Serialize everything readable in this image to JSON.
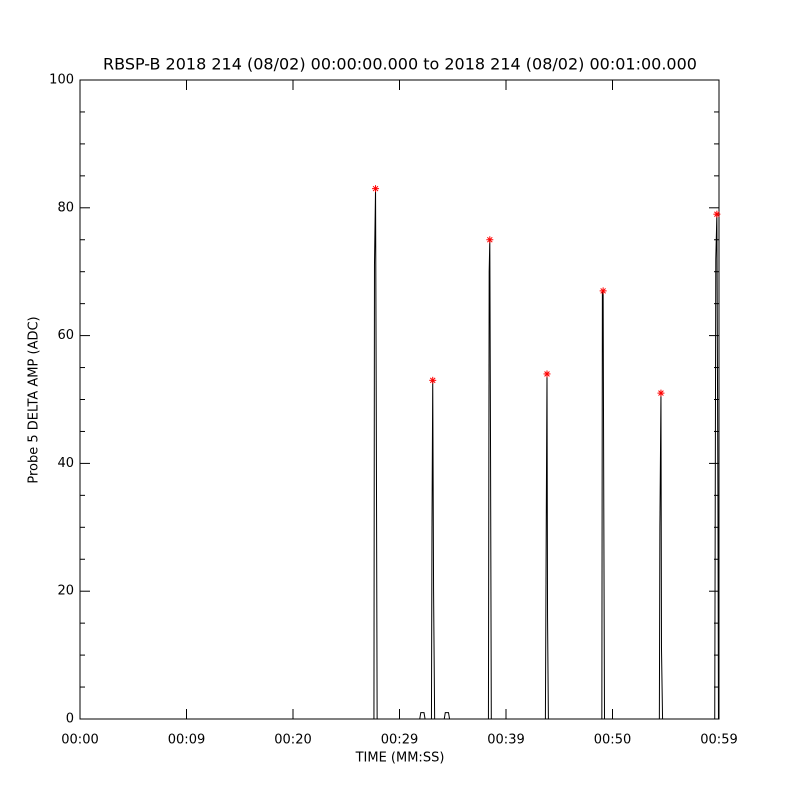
{
  "chart_data": {
    "type": "line",
    "title": "RBSP-B 2018 214 (08/02) 00:00:00.000 to 2018 214 (08/02) 00:01:00.000",
    "xlabel": "TIME (MM:SS)",
    "ylabel": "Probe 5 DELTA AMP (ADC)",
    "xlim": [
      0,
      60
    ],
    "xticks": [
      {
        "value": 0,
        "label": "00:00"
      },
      {
        "value": 10,
        "label": "00:09"
      },
      {
        "value": 20,
        "label": "00:20"
      },
      {
        "value": 30,
        "label": "00:29"
      },
      {
        "value": 40,
        "label": "00:39"
      },
      {
        "value": 50,
        "label": "00:50"
      },
      {
        "value": 60,
        "label": "00:59"
      }
    ],
    "ylim": [
      0,
      100
    ],
    "yticks": [
      0,
      20,
      40,
      60,
      80,
      100
    ],
    "yminorticks": [
      5,
      10,
      15,
      25,
      30,
      35,
      45,
      50,
      55,
      65,
      70,
      75,
      85,
      90,
      95
    ],
    "series": [
      {
        "color": "#000000",
        "marker": "none",
        "x": [
          0,
          27.6,
          27.65,
          27.75,
          27.82,
          27.9,
          31.9,
          32.0,
          32.3,
          32.4,
          33.0,
          33.05,
          33.12,
          33.2,
          33.3,
          34.2,
          34.3,
          34.6,
          34.7,
          38.35,
          38.42,
          38.48,
          38.55,
          38.62,
          43.7,
          43.78,
          43.85,
          43.9,
          43.98,
          49.0,
          49.05,
          49.12,
          49.18,
          49.25,
          54.4,
          54.45,
          54.55,
          54.6,
          54.7,
          59.6,
          59.7,
          59.8,
          59.9,
          59.95
        ],
        "values": [
          0,
          0,
          71,
          83,
          48,
          0,
          0,
          1,
          1,
          0,
          0,
          30,
          53,
          20,
          0,
          0,
          1,
          1,
          0,
          0,
          70,
          75,
          41,
          0,
          0,
          31,
          54,
          16,
          0,
          0,
          67,
          67,
          34,
          0,
          0,
          30,
          51,
          11,
          0,
          0,
          72,
          79,
          35,
          0
        ]
      },
      {
        "color": "#ff0000",
        "marker": "star",
        "x": [
          27.75,
          33.12,
          38.48,
          43.85,
          49.12,
          54.55,
          59.8
        ],
        "values": [
          83,
          53,
          75,
          54,
          67,
          51,
          79
        ]
      }
    ]
  }
}
